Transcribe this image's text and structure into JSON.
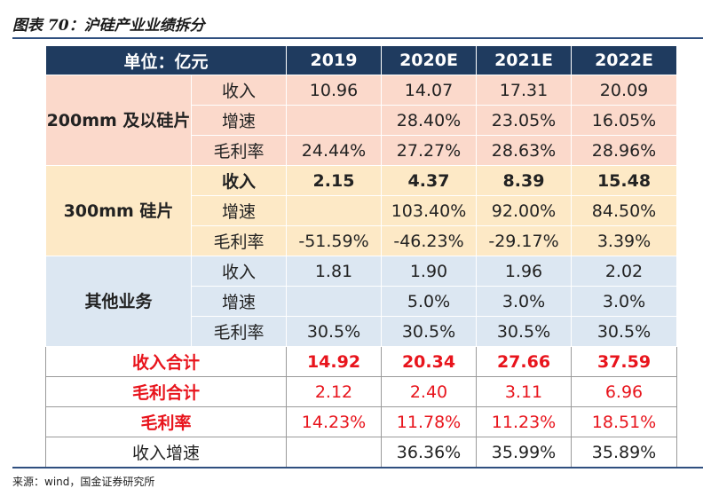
{
  "title": "图表 70：沪硅产业业绩拆分",
  "source": "来源：wind，国金证券研究所",
  "header": {
    "unit": "单位：亿元",
    "years": [
      "2019",
      "2020E",
      "2021E",
      "2022E"
    ]
  },
  "groups": [
    {
      "name": "200mm 及以硅片",
      "rows": [
        {
          "label": "收入",
          "values": [
            "10.96",
            "14.07",
            "17.31",
            "20.09"
          ]
        },
        {
          "label": "增速",
          "values": [
            "",
            "28.40%",
            "23.05%",
            "16.05%"
          ]
        },
        {
          "label": "毛利率",
          "values": [
            "24.44%",
            "27.27%",
            "28.63%",
            "28.96%"
          ]
        }
      ]
    },
    {
      "name": "300mm 硅片",
      "rows": [
        {
          "label": "收入",
          "values": [
            "2.15",
            "4.37",
            "8.39",
            "15.48"
          ]
        },
        {
          "label": "增速",
          "values": [
            "",
            "103.40%",
            "92.00%",
            "84.50%"
          ]
        },
        {
          "label": "毛利率",
          "values": [
            "-51.59%",
            "-46.23%",
            "-29.17%",
            "3.39%"
          ]
        }
      ]
    },
    {
      "name": "其他业务",
      "rows": [
        {
          "label": "收入",
          "values": [
            "1.81",
            "1.90",
            "1.96",
            "2.02"
          ]
        },
        {
          "label": "增速",
          "values": [
            "",
            "5.0%",
            "3.0%",
            "3.0%"
          ]
        },
        {
          "label": "毛利率",
          "values": [
            "30.5%",
            "30.5%",
            "30.5%",
            "30.5%"
          ]
        }
      ]
    }
  ],
  "totals": [
    {
      "label": "收入合计",
      "values": [
        "14.92",
        "20.34",
        "27.66",
        "37.59"
      ]
    },
    {
      "label": "毛利合计",
      "values": [
        "2.12",
        "2.40",
        "3.11",
        "6.96"
      ]
    },
    {
      "label": "毛利率",
      "values": [
        "14.23%",
        "11.78%",
        "11.23%",
        "18.51%"
      ]
    },
    {
      "label": "收入增速",
      "values": [
        "",
        "36.36%",
        "35.99%",
        "35.89%"
      ]
    }
  ],
  "colors": {
    "header_bg": "#1f3b5f",
    "group1_bg": "#fbd9cb",
    "group2_bg": "#fde9c6",
    "group3_bg": "#dce7f2",
    "accent_red": "#e8141c",
    "rule": "#2f4f7f"
  }
}
